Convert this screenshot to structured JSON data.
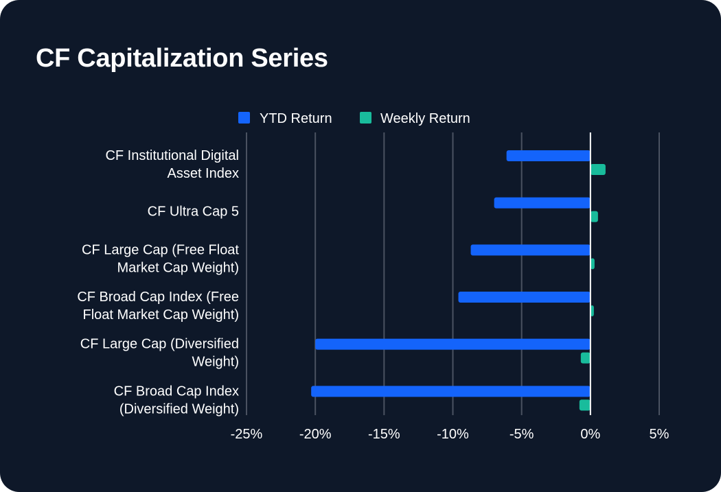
{
  "chart_data": {
    "type": "bar",
    "orientation": "horizontal",
    "title": "CF Capitalization Series",
    "categories": [
      [
        "CF Institutional Digital",
        "Asset Index"
      ],
      [
        "CF Ultra Cap 5"
      ],
      [
        "CF Large Cap (Free Float",
        "Market Cap Weight)"
      ],
      [
        "CF Broad Cap Index (Free",
        "Float Market Cap Weight)"
      ],
      [
        "CF Large Cap (Diversified",
        "Weight)"
      ],
      [
        "CF Broad Cap Index",
        "(Diversified Weight)"
      ]
    ],
    "series": [
      {
        "name": "YTD Return",
        "color": "#1464fb",
        "values": [
          -6.1,
          -7.0,
          -8.7,
          -9.6,
          -20.0,
          -20.3
        ]
      },
      {
        "name": "Weekly Return",
        "color": "#19bc9c",
        "values": [
          1.1,
          0.55,
          0.3,
          0.25,
          -0.7,
          -0.8
        ]
      }
    ],
    "xlim": [
      -25,
      5
    ],
    "x_ticks": [
      -25,
      -20,
      -15,
      -10,
      -5,
      0,
      5
    ],
    "x_tick_labels": [
      "-25%",
      "-20%",
      "-15%",
      "-10%",
      "-5%",
      "0%",
      "5%"
    ],
    "grid": "vertical",
    "legend_position": "top"
  }
}
